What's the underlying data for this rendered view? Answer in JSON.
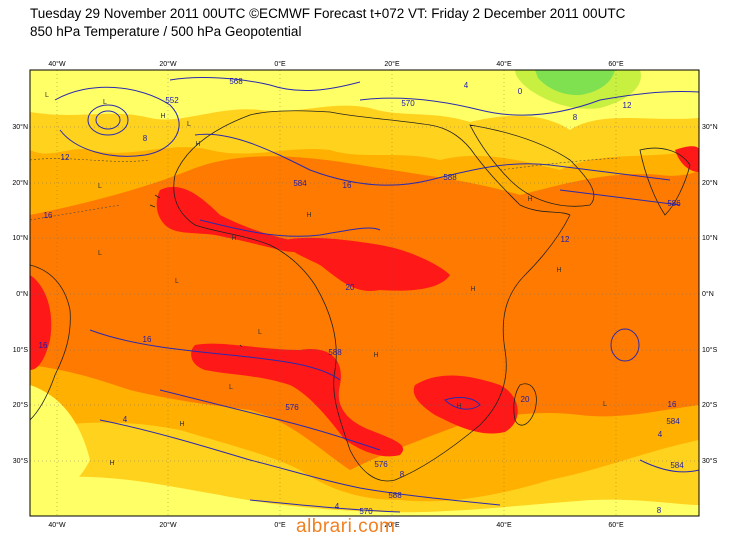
{
  "header": {
    "line1": "Tuesday 29 November 2011 00UTC ©ECMWF Forecast t+072 VT: Friday 2 December 2011 00UTC",
    "line2": "850 hPa Temperature / 500 hPa Geopotential"
  },
  "axes": {
    "top_lon": [
      "40°W",
      "20°W",
      "0°E",
      "20°E",
      "40°E",
      "60°E"
    ],
    "bottom_lon": [
      "40°W",
      "20°W",
      "0°E",
      "20°E",
      "40°E",
      "60°E"
    ],
    "left_lat": [
      "30°N",
      "20°N",
      "10°N",
      "0°N",
      "10°S",
      "20°S",
      "30°S"
    ],
    "right_lat": [
      "30°N",
      "20°N",
      "10°N",
      "0°N",
      "10°S",
      "20°S",
      "30°S"
    ]
  },
  "geopotential_labels": [
    "568",
    "552",
    "570",
    "584",
    "588",
    "586",
    "588",
    "576",
    "584",
    "576",
    "588",
    "570",
    "584"
  ],
  "temperature_labels": [
    "12",
    "8",
    "4",
    "0",
    "8",
    "12",
    "16",
    "20",
    "16",
    "12",
    "16",
    "4",
    "8",
    "20",
    "16",
    "16",
    "4",
    "8",
    "4"
  ],
  "pressure_centres": [
    "L",
    "L",
    "H",
    "H",
    "L",
    "L",
    "H",
    "H",
    "L",
    "H",
    "L",
    "H",
    "L",
    "H",
    "L",
    "H",
    "H",
    "H",
    "L",
    "H"
  ],
  "palette": {
    "land_outline": "#222222",
    "contour": "#2a2ab0",
    "t_lt4": "#ffff66",
    "t_8_12": "#ffd21e",
    "t_12_16": "#ffb000",
    "t_16_20": "#ff7a00",
    "t_gt20": "#ff1818",
    "t_cold": "#c8f040",
    "t_colder": "#7fe050"
  },
  "watermark": "albrari.com"
}
